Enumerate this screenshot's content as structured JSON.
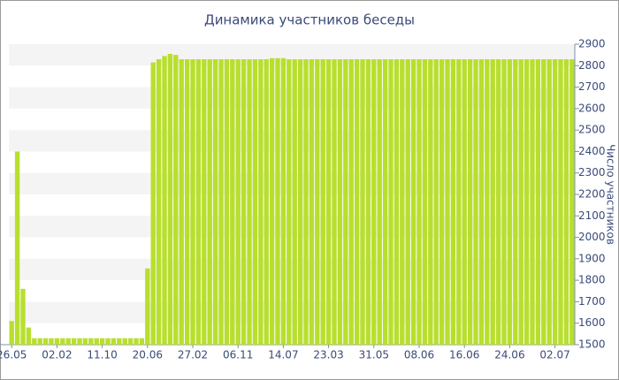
{
  "chart_data": {
    "type": "bar",
    "title": "Динамика участников беседы",
    "y_label": "Число участников",
    "categories": [
      "26.05",
      null,
      null,
      null,
      null,
      null,
      null,
      null,
      "02.02",
      null,
      null,
      null,
      null,
      null,
      null,
      null,
      "11.10",
      null,
      null,
      null,
      null,
      null,
      null,
      null,
      "20.06",
      null,
      null,
      null,
      null,
      null,
      null,
      null,
      "27.02",
      null,
      null,
      null,
      null,
      null,
      null,
      null,
      "06.11",
      null,
      null,
      null,
      null,
      null,
      null,
      null,
      "14.07",
      null,
      null,
      null,
      null,
      null,
      null,
      null,
      "23.03",
      null,
      null,
      null,
      null,
      null,
      null,
      null,
      "31.05",
      null,
      null,
      null,
      null,
      null,
      null,
      null,
      "08.06",
      null,
      null,
      null,
      null,
      null,
      null,
      null,
      "16.06",
      null,
      null,
      null,
      null,
      null,
      null,
      null,
      "24.06",
      null,
      null,
      null,
      null,
      null,
      null,
      null,
      "02.07",
      null,
      null,
      null
    ],
    "values": [
      1610,
      2400,
      1760,
      1580,
      1530,
      1530,
      1530,
      1530,
      1530,
      1530,
      1530,
      1530,
      1530,
      1530,
      1530,
      1530,
      1530,
      1530,
      1530,
      1530,
      1530,
      1530,
      1530,
      1530,
      1855,
      2815,
      2830,
      2845,
      2855,
      2850,
      2830,
      2830,
      2830,
      2830,
      2830,
      2830,
      2830,
      2830,
      2830,
      2830,
      2830,
      2830,
      2830,
      2830,
      2830,
      2830,
      2835,
      2835,
      2835,
      2830,
      2830,
      2830,
      2830,
      2830,
      2830,
      2830,
      2830,
      2830,
      2830,
      2830,
      2830,
      2830,
      2830,
      2830,
      2830,
      2830,
      2830,
      2830,
      2830,
      2830,
      2830,
      2830,
      2830,
      2830,
      2830,
      2830,
      2830,
      2830,
      2830,
      2830,
      2830,
      2830,
      2830,
      2830,
      2830,
      2830,
      2830,
      2830,
      2830,
      2830,
      2830,
      2830,
      2830,
      2830,
      2830,
      2830,
      2830,
      2830,
      2830,
      2830
    ],
    "color": "#b8df2e",
    "ylim": [
      1500,
      2900
    ],
    "yticks": [
      1500,
      1600,
      1700,
      1800,
      1900,
      2000,
      2100,
      2200,
      2300,
      2400,
      2500,
      2600,
      2700,
      2800,
      2900
    ],
    "grid": true
  }
}
